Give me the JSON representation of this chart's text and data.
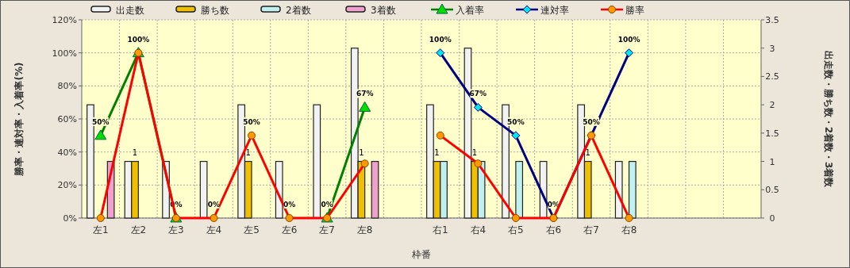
{
  "chart_data": {
    "type": "bar",
    "categories": [
      "左1",
      "左2",
      "左3",
      "左4",
      "左5",
      "左6",
      "左7",
      "左8",
      null,
      "右1",
      "右4",
      "右5",
      "右6",
      "右7",
      "右8",
      null,
      null,
      null
    ],
    "xlabel": "枠番",
    "ylabel": "勝率・連対率・入着率(%)",
    "y2label": "出走数・勝ち数・2着数・3着数",
    "ylim": [
      0,
      120
    ],
    "yticks": [
      {
        "value": 0,
        "label": "0%"
      },
      {
        "value": 20,
        "label": "20%"
      },
      {
        "value": 40,
        "label": "40%"
      },
      {
        "value": 60,
        "label": "60%"
      },
      {
        "value": 80,
        "label": "80%"
      },
      {
        "value": 100,
        "label": "100%"
      },
      {
        "value": 120,
        "label": "120%"
      }
    ],
    "y2lim": [
      0,
      3.5
    ],
    "y2ticks": [
      0,
      0.5,
      1,
      1.5,
      2,
      2.5,
      3,
      3.5
    ],
    "grid": true,
    "legend": "top",
    "series": [
      {
        "name": "出走数",
        "axis": "y2",
        "color": "#f2f2f2",
        "values": [
          2,
          1,
          1,
          1,
          2,
          1,
          2,
          3,
          null,
          2,
          3,
          2,
          1,
          2,
          1,
          null,
          null,
          null
        ]
      },
      {
        "name": "勝ち数",
        "axis": "y2",
        "color": "#f0c000",
        "values": [
          0,
          1,
          0,
          0,
          1,
          0,
          0,
          1,
          null,
          1,
          1,
          0,
          0,
          1,
          0,
          null,
          null,
          null
        ],
        "value_labels": [
          null,
          "1",
          null,
          null,
          "1",
          null,
          null,
          "1",
          null,
          "1",
          "1",
          null,
          null,
          "1",
          null,
          null,
          null,
          null
        ]
      },
      {
        "name": "2着数",
        "axis": "y2",
        "color": "#c0f0f0",
        "values": [
          0,
          0,
          0,
          0,
          0,
          0,
          0,
          0,
          null,
          1,
          1,
          1,
          0,
          0,
          1,
          null,
          null,
          null
        ]
      },
      {
        "name": "3着数",
        "axis": "y2",
        "color": "#f0a0cc",
        "values": [
          1,
          0,
          0,
          0,
          0,
          0,
          0,
          1,
          null,
          0,
          0,
          0,
          0,
          0,
          0,
          null,
          null,
          null
        ]
      },
      {
        "name": "入着率",
        "type": "line",
        "marker": "triangle",
        "color": "#008000",
        "values": [
          50,
          100,
          0,
          null,
          null,
          null,
          0,
          67,
          null,
          null,
          null,
          null,
          null,
          null,
          null,
          null,
          null,
          null
        ],
        "value_labels": [
          "50%",
          "100%",
          "0%",
          null,
          null,
          null,
          "0%",
          "67%",
          null,
          null,
          null,
          null,
          null,
          null,
          null,
          null,
          null,
          null
        ]
      },
      {
        "name": "連対率",
        "type": "line",
        "marker": "diamond",
        "color": "#000080",
        "values": [
          null,
          null,
          null,
          null,
          null,
          null,
          null,
          null,
          null,
          100,
          67,
          50,
          0,
          50,
          100,
          null,
          null,
          null
        ],
        "value_labels": [
          null,
          null,
          null,
          null,
          null,
          null,
          null,
          null,
          null,
          "100%",
          "67%",
          "50%",
          "0%",
          "50%",
          "100%",
          null,
          null,
          null
        ]
      },
      {
        "name": "勝率",
        "type": "line",
        "marker": "circle",
        "color": "#ff0000",
        "values": [
          0,
          100,
          0,
          0,
          50,
          0,
          0,
          33,
          null,
          50,
          33,
          0,
          0,
          50,
          0,
          null,
          null,
          null
        ],
        "value_labels": [
          null,
          null,
          null,
          "0%",
          "50%",
          "0%",
          null,
          null,
          null,
          null,
          null,
          null,
          null,
          null,
          null,
          null,
          null,
          null
        ]
      }
    ]
  }
}
